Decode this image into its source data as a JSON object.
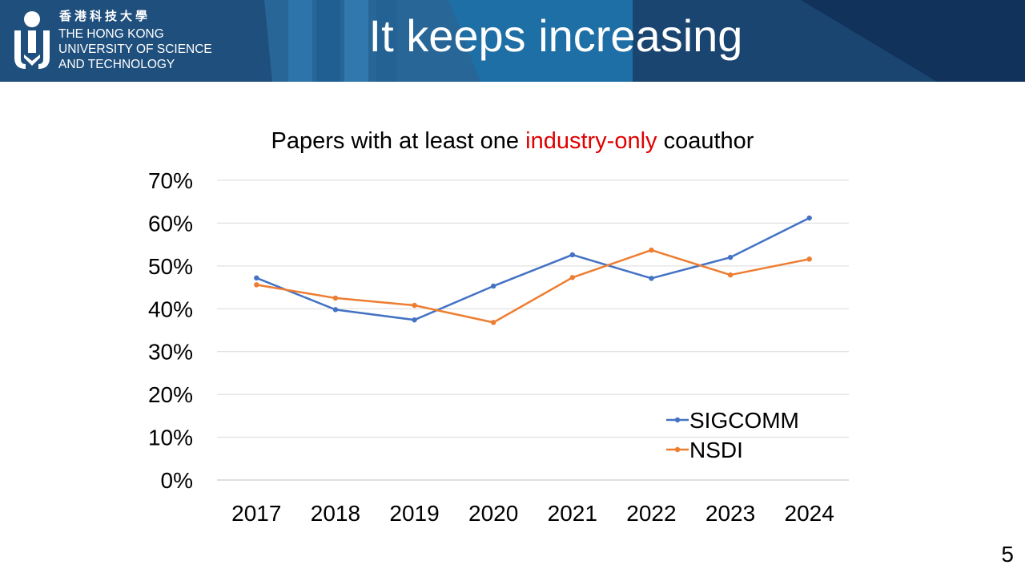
{
  "header": {
    "university_zh": "香港科技大學",
    "university_en_lines": [
      "THE HONG KONG",
      "UNIVERSITY OF SCIENCE",
      "AND TECHNOLOGY"
    ],
    "slide_title": "It keeps increasing"
  },
  "colors": {
    "header_bg": "#1d4d7a",
    "title_highlight": "#e00000",
    "sigcomm": "#4472c4",
    "nsdi": "#ed7d31"
  },
  "chart_data": {
    "type": "line",
    "title_parts": [
      "Papers with at least one ",
      "industry-only",
      " coauthor"
    ],
    "categories": [
      "2017",
      "2018",
      "2019",
      "2020",
      "2021",
      "2022",
      "2023",
      "2024"
    ],
    "y_ticks": [
      "0%",
      "10%",
      "20%",
      "30%",
      "40%",
      "50%",
      "60%",
      "70%"
    ],
    "ylim": [
      0,
      70
    ],
    "grid": true,
    "legend_position": "bottom-right",
    "series": [
      {
        "name": "SIGCOMM",
        "values": [
          47.2,
          39.8,
          37.4,
          45.3,
          52.6,
          47.1,
          52.0,
          61.2
        ]
      },
      {
        "name": "NSDI",
        "values": [
          45.6,
          42.5,
          40.8,
          36.8,
          47.3,
          53.7,
          47.9,
          51.6
        ]
      }
    ]
  },
  "page_number": "5"
}
